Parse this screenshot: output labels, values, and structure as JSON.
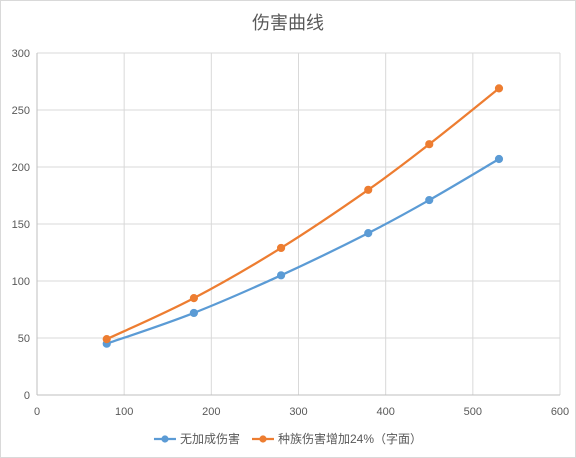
{
  "chart_data": {
    "type": "scatter",
    "title": "伤害曲线",
    "xlabel": "",
    "ylabel": "",
    "xlim": [
      0,
      600
    ],
    "ylim": [
      0,
      300
    ],
    "xticks": [
      0,
      100,
      200,
      300,
      400,
      500,
      600
    ],
    "yticks": [
      0,
      50,
      100,
      150,
      200,
      250,
      300
    ],
    "grid": true,
    "smooth": true,
    "legend_position": "bottom",
    "series": [
      {
        "name": "无加成伤害",
        "color": "#5B9BD5",
        "x": [
          80,
          180,
          280,
          380,
          450,
          530
        ],
        "y": [
          45,
          72,
          105,
          142,
          171,
          207
        ]
      },
      {
        "name": "种族伤害增加24%（字面）",
        "color": "#ED7D31",
        "x": [
          80,
          180,
          280,
          380,
          450,
          530
        ],
        "y": [
          49,
          85,
          129,
          180,
          220,
          269
        ]
      }
    ]
  }
}
